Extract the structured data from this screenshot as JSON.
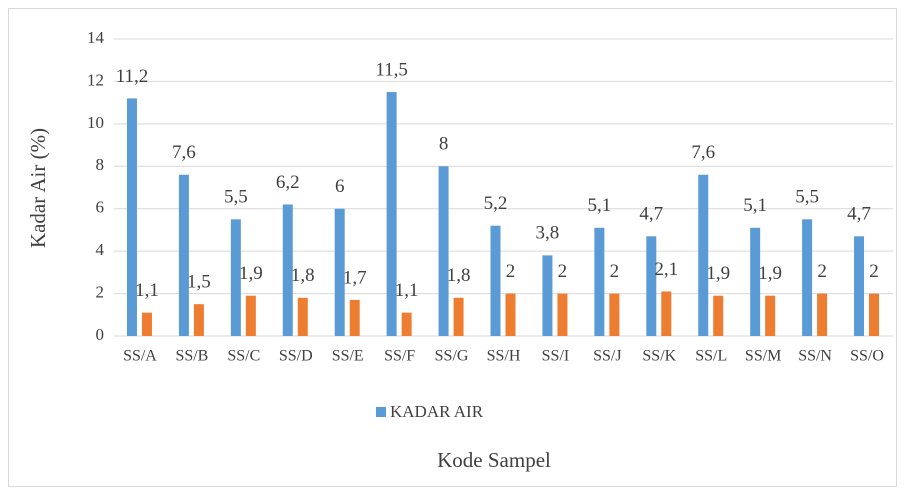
{
  "chart_data": {
    "type": "bar",
    "y_label": "Kadar Air  (%)",
    "x_label": "Kode Sampel",
    "categories": [
      "SS/A",
      "SS/B",
      "SS/C",
      "SS/D",
      "SS/E",
      "SS/F",
      "SS/G",
      "SS/H",
      "SS/I",
      "SS/J",
      "SS/K",
      "SS/L",
      "SS/M",
      "SS/N",
      "SS/O"
    ],
    "series": [
      {
        "name": "KADAR AIR",
        "color": "#5b9bd5",
        "values": [
          11.2,
          7.6,
          5.5,
          6.2,
          6,
          11.5,
          8,
          5.2,
          3.8,
          5.1,
          4.7,
          7.6,
          5.1,
          5.5,
          4.7
        ],
        "value_labels": [
          "11,2",
          "7,6",
          "5,5",
          "6,2",
          "6",
          "11,5",
          "8",
          "5,2",
          "3,8",
          "5,1",
          "4,7",
          "7,6",
          "5,1",
          "5,5",
          "4,7"
        ]
      },
      {
        "color": "#ed7d31",
        "values": [
          1.1,
          1.5,
          1.9,
          1.8,
          1.7,
          1.1,
          1.8,
          2,
          2,
          2,
          2.1,
          1.9,
          1.9,
          2,
          2
        ],
        "value_labels": [
          "1,1",
          "1,5",
          "1,9",
          "1,8",
          "1,7",
          "1,1",
          "1,8",
          "2",
          "2",
          "2",
          "2,1",
          "1,9",
          "1,9",
          "2",
          "2"
        ]
      }
    ],
    "ylim": [
      0,
      14
    ],
    "yticks": [
      0,
      2,
      4,
      6,
      8,
      10,
      12,
      14
    ],
    "grid": true,
    "legend": "bottom"
  }
}
